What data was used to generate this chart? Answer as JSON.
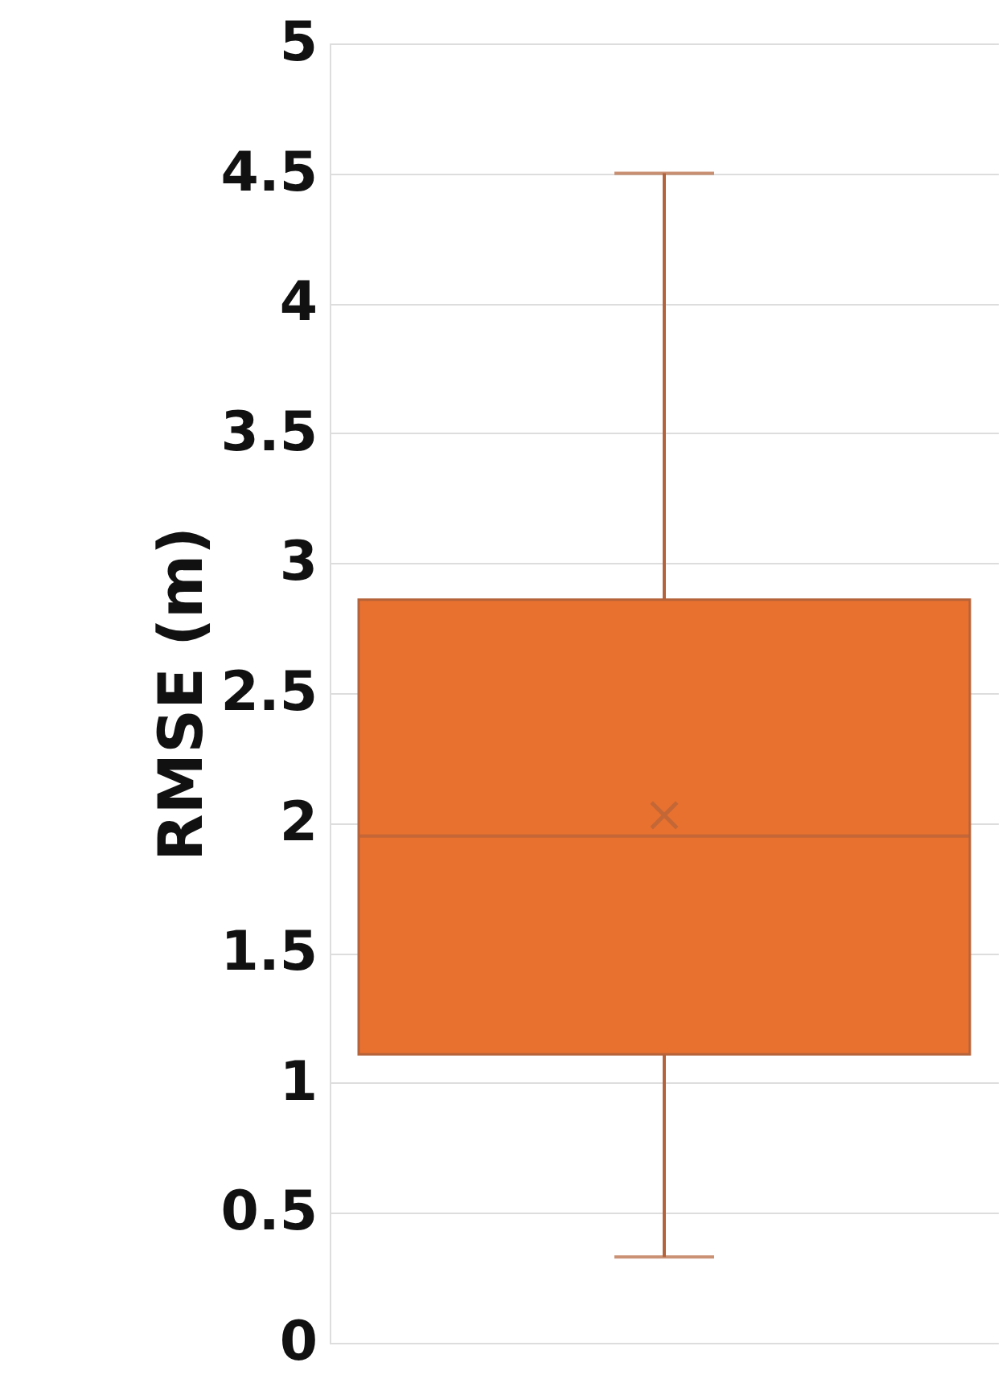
{
  "chart_data": {
    "type": "box",
    "ylabel": "RMSE (m)",
    "categories": [
      null
    ],
    "boxes": [
      {
        "low": 0.33,
        "q1": 1.11,
        "median": 1.95,
        "q3": 2.86,
        "high": 4.5,
        "mean": 2.03
      }
    ],
    "color": "#e8712f",
    "ylim": [
      0,
      5
    ],
    "yticks": [
      0,
      0.5,
      1,
      1.5,
      2,
      2.5,
      3,
      3.5,
      4,
      4.5,
      5
    ],
    "grid": "y",
    "tick_labels": "y"
  }
}
